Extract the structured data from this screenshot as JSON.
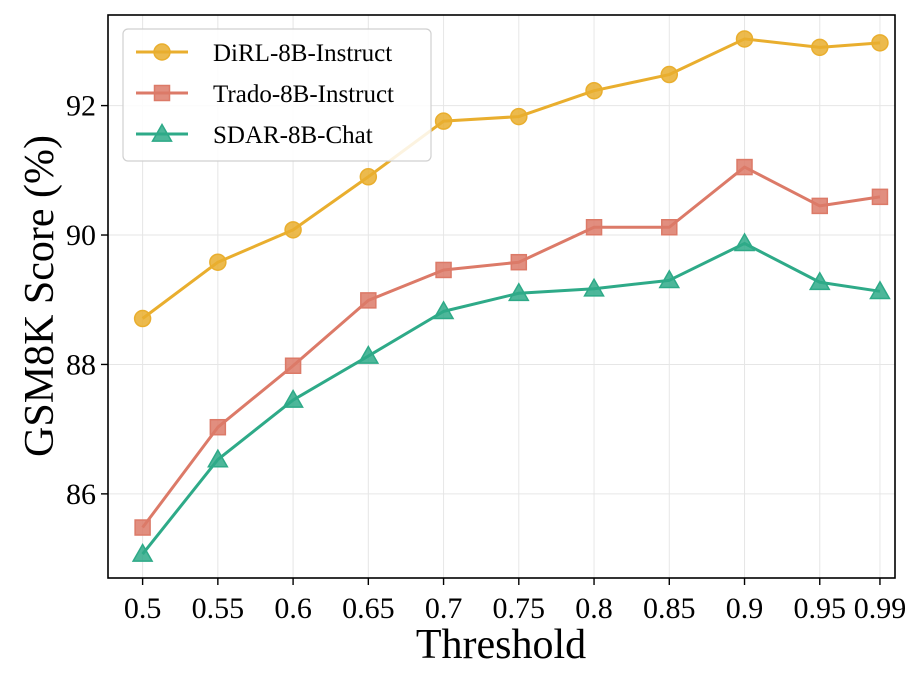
{
  "chart_data": {
    "type": "line",
    "title": "",
    "xlabel": "Threshold",
    "ylabel": "GSM8K Score (%)",
    "categories": [
      "0.5",
      "0.55",
      "0.6",
      "0.65",
      "0.7",
      "0.75",
      "0.8",
      "0.85",
      "0.9",
      "0.95",
      "0.99"
    ],
    "x": [
      0.5,
      0.55,
      0.6,
      0.65,
      0.7,
      0.75,
      0.8,
      0.85,
      0.9,
      0.95,
      0.99
    ],
    "xlim": [
      0.477,
      1.0
    ],
    "ylim": [
      84.7,
      93.4
    ],
    "yticks": [
      86,
      88,
      90,
      92
    ],
    "ytick_labels": [
      "86",
      "88",
      "90",
      "92"
    ],
    "grid": true,
    "legend_position": "top-left",
    "series": [
      {
        "name": "DiRL-8B-Instruct",
        "color": "#E9AE2E",
        "marker": "circle",
        "values": [
          88.71,
          89.58,
          90.08,
          90.9,
          91.76,
          91.83,
          92.23,
          92.48,
          93.03,
          92.9,
          92.97
        ]
      },
      {
        "name": "Trado-8B-Instruct",
        "color": "#DC7A68",
        "marker": "square",
        "values": [
          85.48,
          87.03,
          87.98,
          88.99,
          89.46,
          89.58,
          90.12,
          90.12,
          91.05,
          90.45,
          90.59
        ]
      },
      {
        "name": "SDAR-8B-Chat",
        "color": "#2EAA88",
        "marker": "triangle",
        "values": [
          85.07,
          86.53,
          87.45,
          88.13,
          88.82,
          89.1,
          89.17,
          89.3,
          89.87,
          89.27,
          89.13
        ]
      }
    ]
  }
}
